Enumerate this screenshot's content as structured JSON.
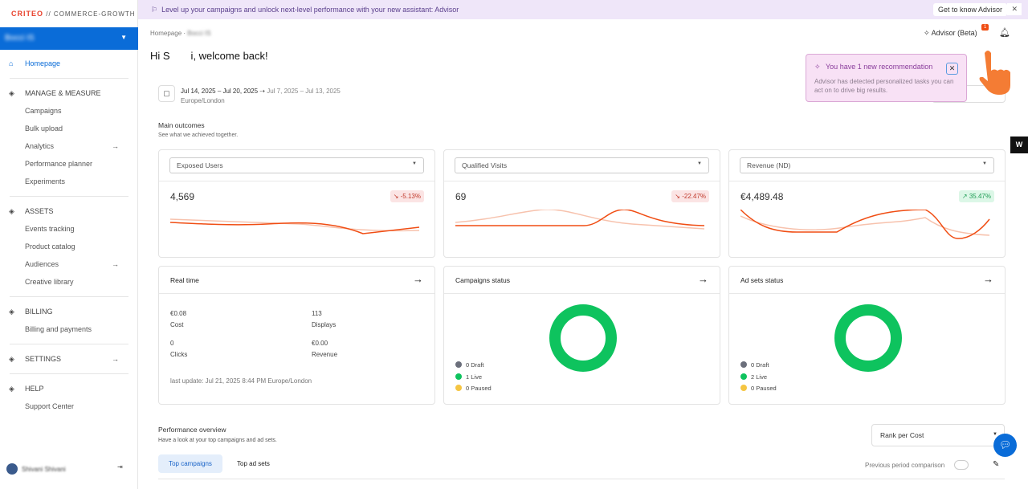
{
  "brand": {
    "logo": "CRITEO",
    "product": "// COMMERCE-GROWTH"
  },
  "account": {
    "name": "Bocci IS"
  },
  "sidebar": {
    "homepage": "Homepage",
    "sections": [
      {
        "label": "MANAGE & MEASURE",
        "icon": "waveform-icon",
        "items": [
          {
            "label": "Campaigns"
          },
          {
            "label": "Bulk upload"
          },
          {
            "label": "Analytics",
            "arrow": true
          },
          {
            "label": "Performance planner"
          },
          {
            "label": "Experiments"
          }
        ]
      },
      {
        "label": "ASSETS",
        "icon": "layers-icon",
        "items": [
          {
            "label": "Events tracking"
          },
          {
            "label": "Product catalog"
          },
          {
            "label": "Audiences",
            "arrow": true
          },
          {
            "label": "Creative library"
          }
        ]
      },
      {
        "label": "BILLING",
        "icon": "card-icon",
        "items": [
          {
            "label": "Billing and payments"
          }
        ]
      },
      {
        "label": "SETTINGS",
        "icon": "gear-icon",
        "items": []
      },
      {
        "label": "HELP",
        "icon": "help-icon",
        "items": [
          {
            "label": "Support Center"
          }
        ]
      }
    ],
    "user": "Shivani Shivani"
  },
  "banner": {
    "text": "Level up your campaigns and unlock next-level performance with your new assistant: Advisor",
    "cta": "Get to know Advisor"
  },
  "header": {
    "breadcrumb_home": "Homepage",
    "breadcrumb_current": "Bocci IS",
    "greeting": "Hi S    i, welcome back!",
    "advisor": "Advisor (Beta)",
    "advisor_badge": "1"
  },
  "popover": {
    "title": "You have 1 new recommendation",
    "desc": "Advisor has detected personalized tasks you can act on to drive big results."
  },
  "date": {
    "range": "Jul 14, 2025 – Jul 20, 2025",
    "compare": "Jul 7, 2025 – Jul 13, 2025",
    "tz": "Europe/London"
  },
  "outcomes": {
    "title": "Main outcomes",
    "subtitle": "See what we achieved together.",
    "cards": [
      {
        "metric": "Exposed Users",
        "value": "4,569",
        "change": "-5.13%",
        "trend": "down"
      },
      {
        "metric": "Qualified Visits",
        "value": "69",
        "change": "-22.47%",
        "trend": "down"
      },
      {
        "metric": "Revenue (ND)",
        "value": "€4,489.48",
        "change": "35.47%",
        "trend": "up"
      }
    ]
  },
  "realtime": {
    "title": "Real time",
    "cost": "€0.08",
    "cost_l": "Cost",
    "displays": "113",
    "displays_l": "Displays",
    "clicks": "0",
    "clicks_l": "Clicks",
    "revenue": "€0.00",
    "revenue_l": "Revenue",
    "update": "last update: Jul 21, 2025 8:44 PM Europe/London"
  },
  "campaigns_status": {
    "title": "Campaigns status",
    "draft": "0 Draft",
    "live": "1 Live",
    "paused": "0 Paused"
  },
  "adsets_status": {
    "title": "Ad sets status",
    "draft": "0 Draft",
    "live": "2 Live",
    "paused": "0 Paused"
  },
  "colors": {
    "draft": "#6b6f7b",
    "live": "#0ec35e",
    "paused": "#f5c542",
    "accent": "#0a6cd8",
    "line": "#f04d13"
  },
  "performance": {
    "title": "Performance overview",
    "subtitle": "Have a look at your top campaigns and ad sets.",
    "rank": "Rank per Cost",
    "tab1": "Top campaigns",
    "tab2": "Top ad sets",
    "compare": "Previous period comparison"
  }
}
